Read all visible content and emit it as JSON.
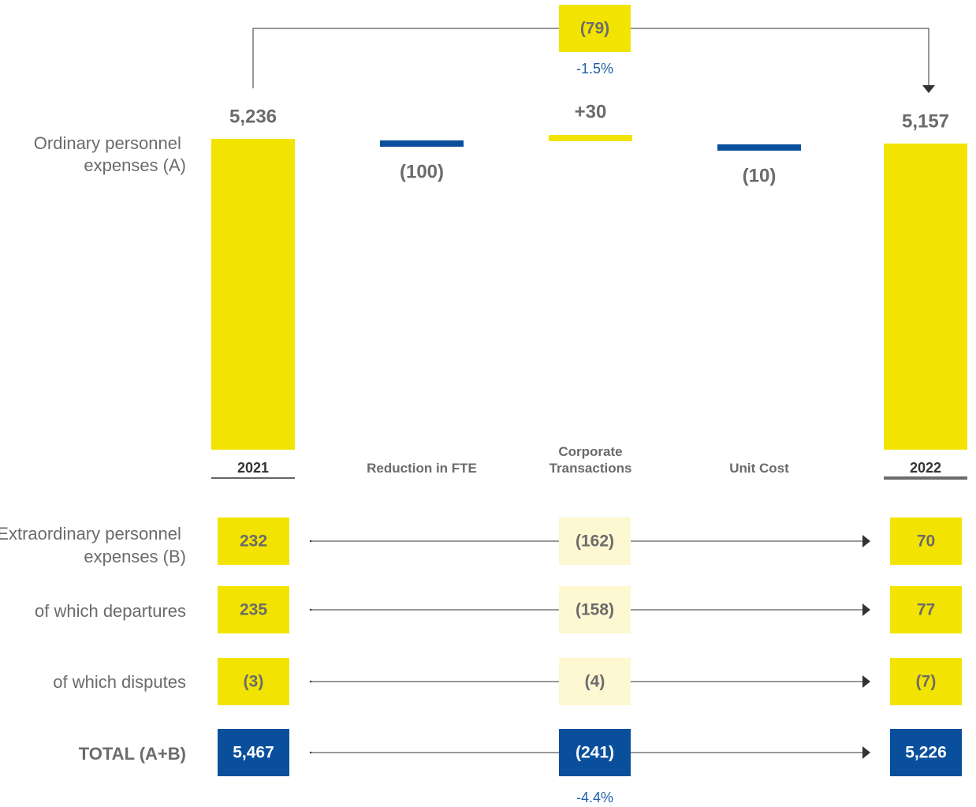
{
  "colors": {
    "yellow": "#f2e400",
    "pale_yellow": "#fdf7d2",
    "blue": "#0a4f9c",
    "gray": "#6b6b6b",
    "dark": "#333333"
  },
  "side_labels": {
    "ordinary": [
      "Ordinary personnel",
      "expenses (A)"
    ],
    "extraordinary": [
      "Extraordinary personnel",
      "expenses (B)"
    ],
    "departures": "of which departures",
    "disputes": "of which disputes",
    "total": "TOTAL (A+B)"
  },
  "chart_data": {
    "type": "bar",
    "subtype": "waterfall",
    "categories": [
      "2021",
      "Reduction in FTE",
      "Corporate Transactions",
      "Unit Cost",
      "2022"
    ],
    "category_lines": [
      [
        "2021"
      ],
      [
        "Reduction in FTE"
      ],
      [
        "Corporate",
        "Transactions"
      ],
      [
        "Unit Cost"
      ],
      [
        "2022"
      ]
    ],
    "values": [
      5236,
      -100,
      30,
      -10,
      5157
    ],
    "value_labels": [
      "5,236",
      "(100)",
      "+30",
      "(10)",
      "5,157"
    ],
    "kinds": [
      "total",
      "decrease",
      "increase",
      "decrease",
      "total"
    ],
    "overall_change": {
      "label": "(79)",
      "percent": "-1.5%"
    }
  },
  "table": {
    "rows": [
      {
        "label_key": "extraordinary",
        "start": "232",
        "change": "(162)",
        "end": "70",
        "style": "yellow"
      },
      {
        "label_key": "departures",
        "start": "235",
        "change": "(158)",
        "end": "77",
        "style": "yellow"
      },
      {
        "label_key": "disputes",
        "start": "(3)",
        "change": "(4)",
        "end": "(7)",
        "style": "yellow"
      },
      {
        "label_key": "total",
        "start": "5,467",
        "change": "(241)",
        "end": "5,226",
        "style": "blue"
      }
    ],
    "total_percent": "-4.4%"
  }
}
